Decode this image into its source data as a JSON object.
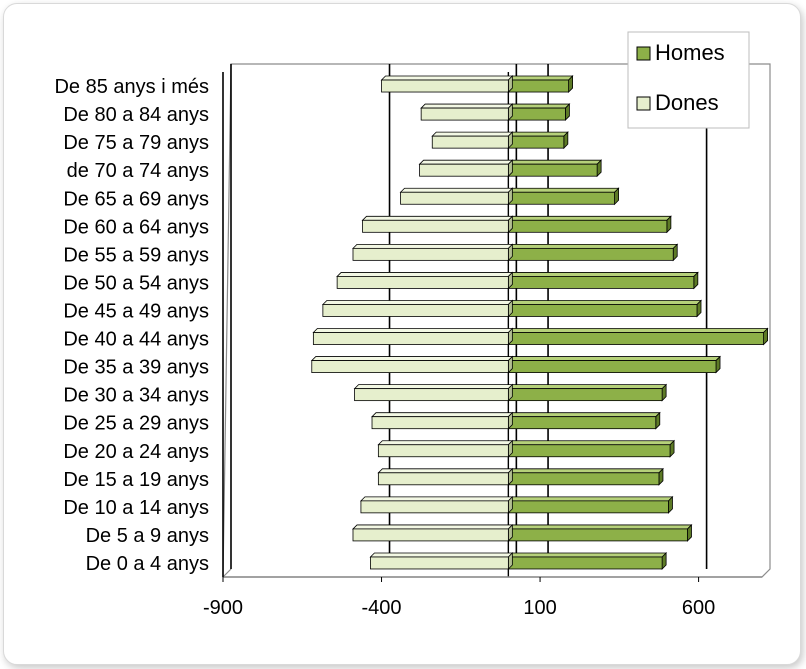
{
  "chart_data": {
    "type": "bar",
    "orientation": "horizontal",
    "style": "population-pyramid-3d",
    "categories": [
      "De 0 a 4 anys",
      "De 5 a 9 anys",
      "De 10 a 14 anys",
      "De 15 a 19 anys",
      "De 20 a 24 anys",
      "De 25 a 29 anys",
      "De 30 a 34 anys",
      "De 35 a 39 anys",
      "De 40 a 44 anys",
      "De 45 a 49 anys",
      "De 50 a 54 anys",
      "De 55 a 59 anys",
      "De 60 a 64 anys",
      "De 65 a 69 anys",
      "de 70 a 74 anys",
      "De 75 a 79 anys",
      "De 80 a 84 anys",
      "De 85 anys i més"
    ],
    "series": [
      {
        "name": "Homes",
        "color": "#8db048",
        "values": [
          485,
          565,
          505,
          475,
          510,
          465,
          485,
          655,
          805,
          595,
          585,
          520,
          500,
          335,
          280,
          175,
          180,
          190
        ]
      },
      {
        "name": "Dones",
        "color": "#e6efcd",
        "values": [
          -435,
          -490,
          -465,
          -410,
          -410,
          -430,
          -485,
          -620,
          -615,
          -585,
          -540,
          -490,
          -460,
          -340,
          -280,
          -240,
          -275,
          -400
        ]
      }
    ],
    "xlim": [
      -900,
      800
    ],
    "xticks": [
      -900,
      -400,
      100,
      600
    ],
    "xtick_labels": [
      "-900",
      "-400",
      "100",
      "600"
    ],
    "grid": "vertical major",
    "legend": "top-right"
  },
  "legend": {
    "items": [
      {
        "label": "Homes",
        "color": "#8db048"
      },
      {
        "label": "Dones",
        "color": "#e6efcd"
      }
    ]
  }
}
